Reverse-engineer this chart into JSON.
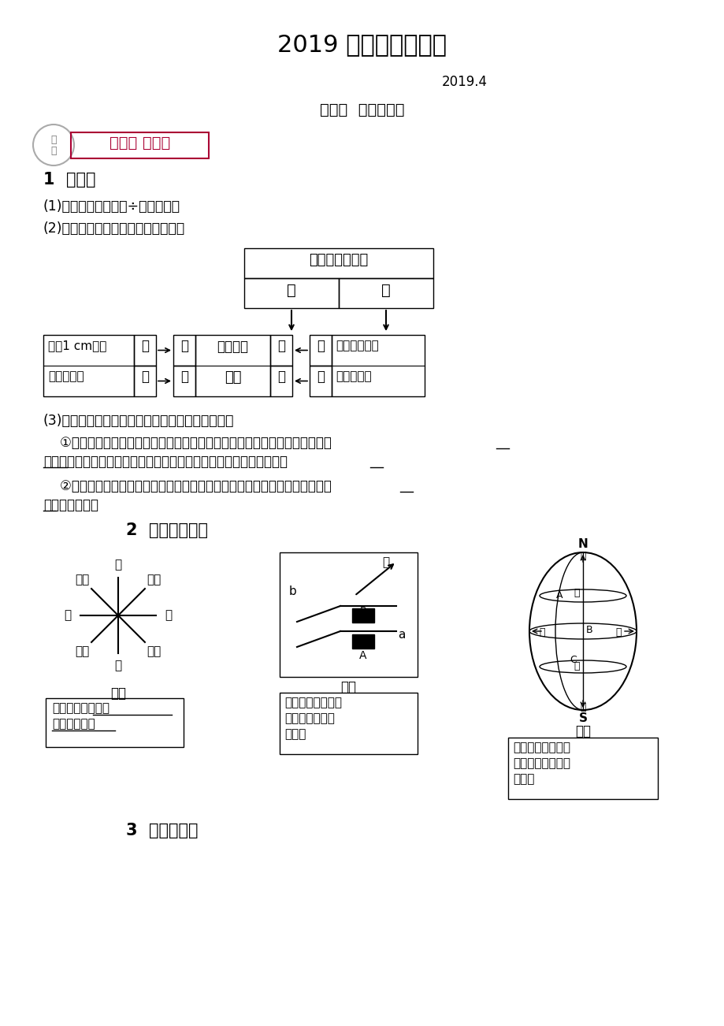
{
  "title": "2019 届精品地理资料",
  "subtitle": "2019.4",
  "section_title": "考点二  地图三要素",
  "badge_text1": "基础点 重难点",
  "section1_title": "1  比例尺",
  "text1": "(1)比例尺＝图上距离÷实地距离。",
  "text2": "(2)比例尺的大小：就是分数的大小。",
  "table_header": "比例尺中的分母",
  "table_cells": [
    "大",
    "小"
  ],
  "left_box_line1": "图上1 cm代表",
  "left_box_line2": "的实地距离",
  "left_small_top": "长",
  "left_small_bot": "短",
  "center_small_top1": "小",
  "center_small_bot1": "大",
  "center_box_line1": "比例尺的",
  "center_box_line2": "大小",
  "center_top_label": "大",
  "center_bot_label": "小",
  "right_small_top": "小",
  "right_small_bot": "大",
  "right_box_line1": "同样图幅代表",
  "right_box_line2": "的实际范围",
  "text3": "(3)比例尺的大小与表示的范围和内容的详略的关系",
  "text4_l1": "    ①图幅大小相同时：比例尺越大，地图所表示的范围越小，图内表示的内容越",
  "text4_l2": "详细；比例尺越小，地图所表示的范围越大，图内表示的内容越简略。",
  "text5_l1": "    ②实地范围相同时：比例尺小，图幅面积小，内容简略；比例尺大，图幅面积",
  "text5_l2": "大，内容详细。",
  "section2_title": "2  地图上的方向",
  "directions": [
    "北",
    "南",
    "西",
    "东",
    "东北",
    "西北",
    "东南",
    "西南"
  ],
  "fig1_label": "图一",
  "fig2_label": "图二",
  "fig3_label": "图三",
  "cap1_l1": "一般定向：上北下",
  "cap1_l2": "南，左西右东",
  "cap2_l1": "指向标定方向：箭",
  "cap2_l2": "头的方向一般指",
  "cap2_l3": "示北方",
  "cap3_l1": "经纬网定向：经线",
  "cap3_l2": "指示南北，纬线指",
  "cap3_l3": "示东西",
  "section3_title": "3  图例和注记",
  "bg_color": "#ffffff",
  "badge_border_color": "#aa0033",
  "badge_text_color": "#aa0033",
  "underline_words": [
    "小",
    "详细",
    "大",
    "小",
    "大"
  ],
  "fig2_north_label": "北",
  "globe_N": "N",
  "globe_S": "S",
  "globe_labels": [
    "北",
    "南",
    "西",
    "东",
    "南",
    "A",
    "B",
    "C"
  ]
}
